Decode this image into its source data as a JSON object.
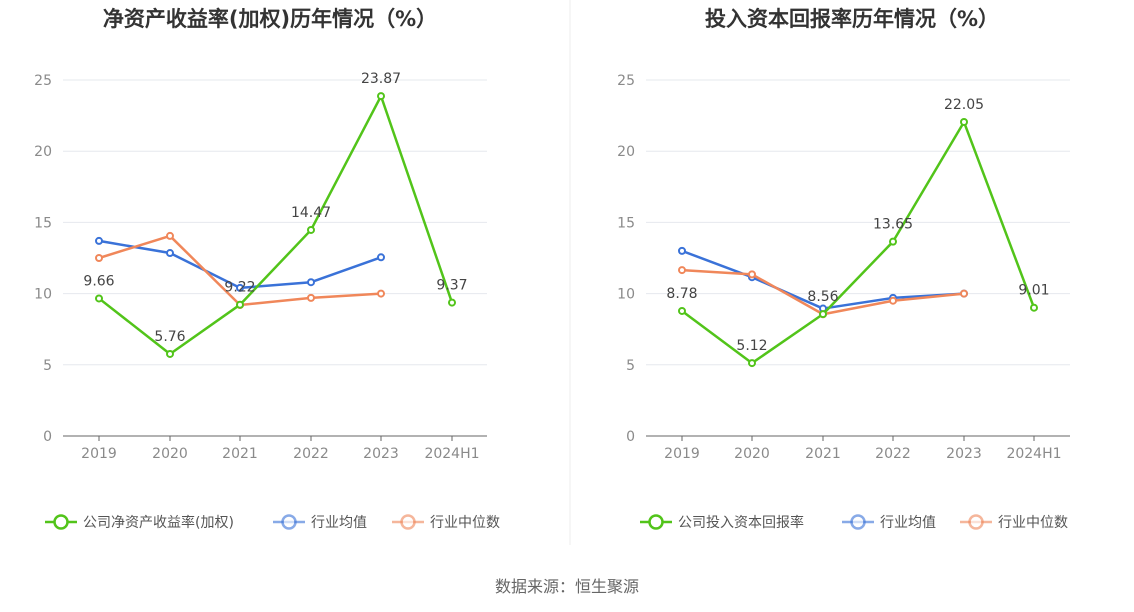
{
  "source": "数据来源：恒生聚源",
  "chart_data": [
    {
      "type": "line",
      "title": "净资产收益率(加权)历年情况（%）",
      "categories": [
        "2019",
        "2020",
        "2021",
        "2022",
        "2023",
        "2024H1"
      ],
      "ylim": [
        0,
        25
      ],
      "yticks": [
        0,
        5,
        10,
        15,
        20,
        25
      ],
      "grid": true,
      "legend_position": "bottom",
      "series": [
        {
          "name": "公司净资产收益率(加权)",
          "color": "#52c41a",
          "values": [
            9.66,
            5.76,
            9.22,
            14.47,
            23.87,
            9.37
          ],
          "labels": [
            "9.66",
            "5.76",
            "9.22",
            "14.47",
            "23.87",
            "9.37"
          ]
        },
        {
          "name": "行业均值",
          "color": "#3a72d8",
          "values": [
            13.7,
            12.85,
            10.4,
            10.8,
            12.55,
            null
          ]
        },
        {
          "name": "行业中位数",
          "color": "#f0875a",
          "values": [
            12.5,
            14.05,
            9.2,
            9.7,
            10.0,
            null
          ]
        }
      ]
    },
    {
      "type": "line",
      "title": "投入资本回报率历年情况（%）",
      "categories": [
        "2019",
        "2020",
        "2021",
        "2022",
        "2023",
        "2024H1"
      ],
      "ylim": [
        0,
        25
      ],
      "yticks": [
        0,
        5,
        10,
        15,
        20,
        25
      ],
      "grid": true,
      "legend_position": "bottom",
      "series": [
        {
          "name": "公司投入资本回报率",
          "color": "#52c41a",
          "values": [
            8.78,
            5.12,
            8.56,
            13.65,
            22.05,
            9.01
          ],
          "labels": [
            "8.78",
            "5.12",
            "8.56",
            "13.65",
            "22.05",
            "9.01"
          ]
        },
        {
          "name": "行业均值",
          "color": "#3a72d8",
          "values": [
            13.0,
            11.15,
            8.95,
            9.7,
            10.0,
            null
          ]
        },
        {
          "name": "行业中位数",
          "color": "#f0875a",
          "values": [
            11.65,
            11.35,
            8.55,
            9.5,
            10.0,
            null
          ]
        }
      ]
    }
  ]
}
